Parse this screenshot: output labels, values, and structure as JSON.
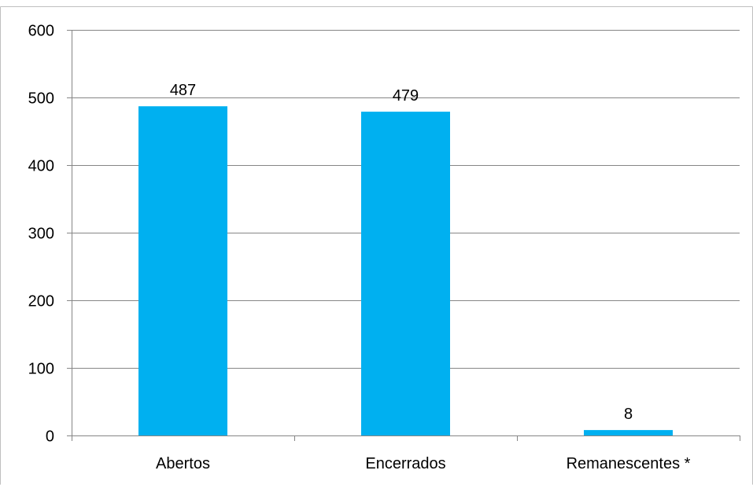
{
  "chart_data": {
    "type": "bar",
    "title": "",
    "xlabel": "",
    "ylabel": "",
    "categories": [
      "Abertos",
      "Encerrados",
      "Remanescentes *"
    ],
    "values": [
      487,
      479,
      8
    ],
    "data_labels": [
      "487",
      "479",
      "8"
    ],
    "ylim": [
      0,
      600
    ],
    "yticks": [
      0,
      100,
      200,
      300,
      400,
      500,
      600
    ],
    "grid": true,
    "legend": "none",
    "bar_color": "#00b0f0"
  }
}
